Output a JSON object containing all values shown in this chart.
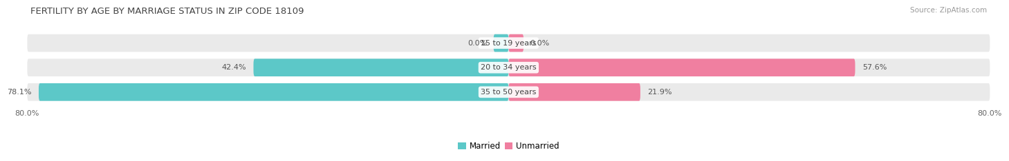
{
  "title": "FERTILITY BY AGE BY MARRIAGE STATUS IN ZIP CODE 18109",
  "source": "Source: ZipAtlas.com",
  "categories": [
    "15 to 19 years",
    "20 to 34 years",
    "35 to 50 years"
  ],
  "married_values": [
    0.0,
    42.4,
    78.1
  ],
  "unmarried_values": [
    0.0,
    57.6,
    21.9
  ],
  "married_color": "#5CC8C8",
  "unmarried_color": "#F07FA0",
  "bar_background_color": "#EAEAEA",
  "bar_height": 0.72,
  "xlim_left": -80.0,
  "xlim_right": 80.0,
  "tick_label_left": "80.0%",
  "tick_label_right": "80.0%",
  "title_fontsize": 9.5,
  "label_fontsize": 8,
  "value_fontsize": 8,
  "legend_fontsize": 8.5,
  "source_fontsize": 7.5,
  "background_color": "#FFFFFF"
}
